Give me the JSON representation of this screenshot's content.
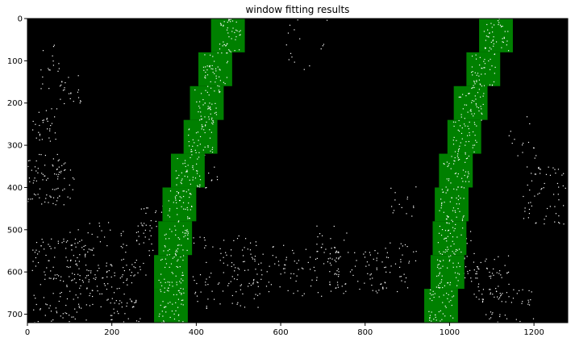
{
  "chart_data": {
    "type": "image",
    "title": "window fitting results",
    "xlim": [
      0,
      1280
    ],
    "ylim": [
      720,
      0
    ],
    "x_ticks": [
      0,
      200,
      400,
      600,
      800,
      1000,
      1200
    ],
    "y_ticks": [
      0,
      100,
      200,
      300,
      400,
      500,
      600,
      700
    ],
    "background_color": "#000000",
    "window_color": "#008000",
    "edge_color": "#ffffff",
    "window_size": [
      80,
      80
    ],
    "left_windows": [
      {
        "x0": 300,
        "y0": 640
      },
      {
        "x0": 300,
        "y0": 560
      },
      {
        "x0": 310,
        "y0": 480
      },
      {
        "x0": 320,
        "y0": 400
      },
      {
        "x0": 340,
        "y0": 320
      },
      {
        "x0": 370,
        "y0": 240
      },
      {
        "x0": 385,
        "y0": 160
      },
      {
        "x0": 405,
        "y0": 80
      },
      {
        "x0": 435,
        "y0": 0
      }
    ],
    "right_windows": [
      {
        "x0": 940,
        "y0": 640
      },
      {
        "x0": 955,
        "y0": 560
      },
      {
        "x0": 960,
        "y0": 480
      },
      {
        "x0": 965,
        "y0": 400
      },
      {
        "x0": 975,
        "y0": 320
      },
      {
        "x0": 995,
        "y0": 240
      },
      {
        "x0": 1010,
        "y0": 160
      },
      {
        "x0": 1040,
        "y0": 80
      },
      {
        "x0": 1070,
        "y0": 0
      }
    ]
  }
}
